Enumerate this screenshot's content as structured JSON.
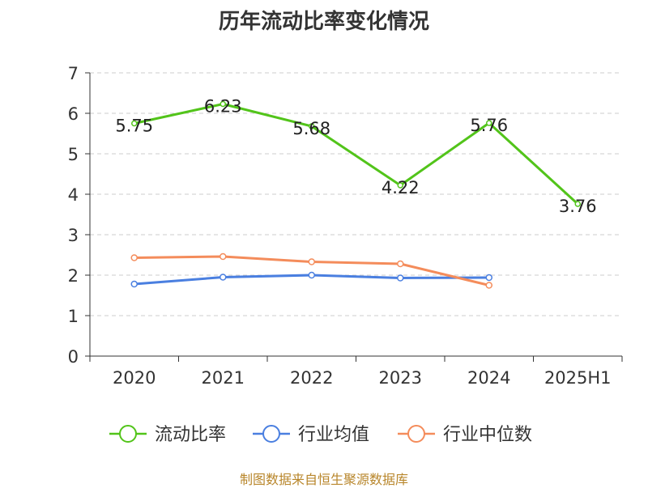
{
  "chart_data": {
    "type": "line",
    "title": "历年流动比率变化情况",
    "categories": [
      "2020",
      "2021",
      "2022",
      "2023",
      "2024",
      "2025H1"
    ],
    "ylim": [
      0,
      7
    ],
    "yticks": [
      0,
      1,
      2,
      3,
      4,
      5,
      6,
      7
    ],
    "grid": true,
    "legend_position": "bottom",
    "series": [
      {
        "name": "流动比率",
        "color": "#52c41a",
        "labeled": true,
        "values": [
          5.75,
          6.23,
          5.68,
          4.22,
          5.76,
          3.76
        ],
        "labels": [
          "5.75",
          "6.23",
          "5.68",
          "4.22",
          "5.76",
          "3.76"
        ]
      },
      {
        "name": "行业均值",
        "color": "#4a7fe0",
        "labeled": false,
        "values": [
          1.78,
          1.95,
          2.0,
          1.93,
          1.94,
          null
        ]
      },
      {
        "name": "行业中位数",
        "color": "#f48c5b",
        "labeled": false,
        "values": [
          2.43,
          2.46,
          2.33,
          2.28,
          1.75,
          null
        ]
      }
    ]
  },
  "source_note": "制图数据来自恒生聚源数据库"
}
